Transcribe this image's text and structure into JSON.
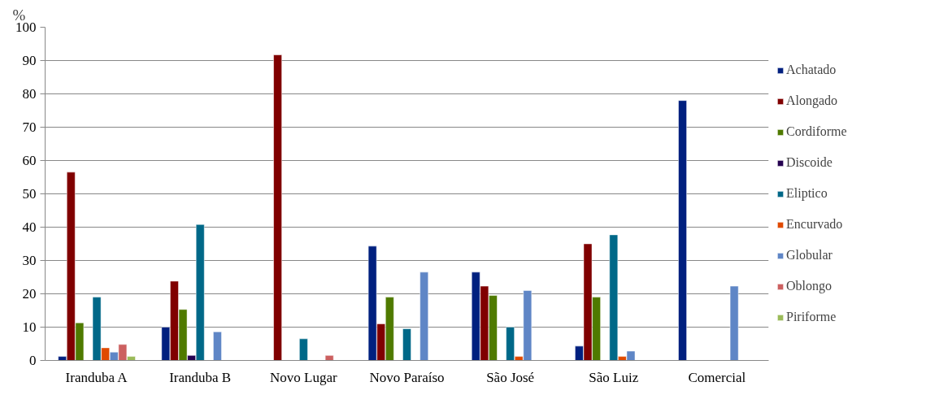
{
  "chart_data": {
    "type": "bar",
    "ylabel": "%",
    "categories": [
      "Iranduba A",
      "Iranduba B",
      "Novo Lugar",
      "Novo Paraíso",
      "São José",
      "São Luiz",
      "Comercial"
    ],
    "series": [
      {
        "name": "Achatado",
        "color": "#00207f",
        "values": [
          1.2,
          10,
          null,
          34.3,
          26.5,
          4.3,
          78
        ]
      },
      {
        "name": "Alongado",
        "color": "#800000",
        "values": [
          56.5,
          23.8,
          91.7,
          11,
          22.3,
          35,
          null
        ]
      },
      {
        "name": "Cordiforme",
        "color": "#4f7a00",
        "values": [
          11.3,
          15.3,
          null,
          19,
          19.5,
          19,
          null
        ]
      },
      {
        "name": "Discoide",
        "color": "#250050",
        "values": [
          null,
          1.5,
          null,
          null,
          null,
          null,
          null
        ]
      },
      {
        "name": "Eliptico",
        "color": "#006888",
        "values": [
          19,
          40.8,
          6.5,
          9.5,
          10,
          37.7,
          null
        ]
      },
      {
        "name": "Encurvado",
        "color": "#e04a00",
        "values": [
          3.8,
          null,
          null,
          null,
          1.2,
          1.2,
          null
        ]
      },
      {
        "name": "Globular",
        "color": "#5f86c6",
        "values": [
          2.5,
          8.6,
          null,
          26.5,
          21,
          2.8,
          22.3
        ]
      },
      {
        "name": "Oblongo",
        "color": "#cc6060",
        "values": [
          4.8,
          null,
          1.5,
          null,
          null,
          null,
          null
        ]
      },
      {
        "name": "Piriforme",
        "color": "#9bbb59",
        "values": [
          1.2,
          null,
          null,
          null,
          null,
          null,
          null
        ]
      }
    ],
    "ylim": [
      0,
      100
    ],
    "yticks": [
      0,
      10,
      20,
      30,
      40,
      50,
      60,
      70,
      80,
      90,
      100
    ],
    "grid": "y",
    "legend": "right"
  }
}
